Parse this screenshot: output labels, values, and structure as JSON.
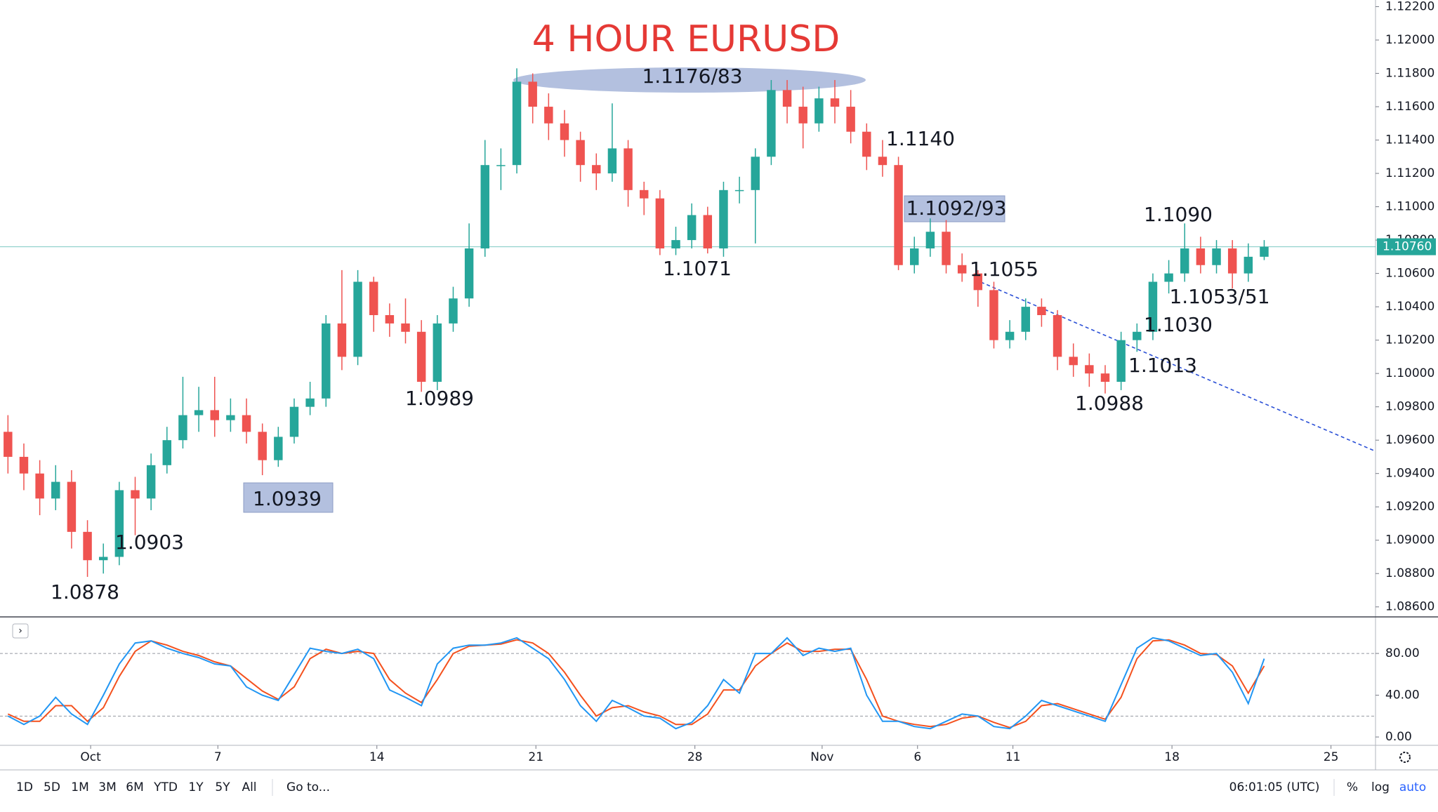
{
  "chart_data": [
    {
      "type": "candlestick",
      "title": "4 HOUR EURUSD",
      "open": [
        1.0965,
        1.095,
        1.094,
        1.0925,
        1.0935,
        1.0905,
        1.0888,
        1.089,
        1.093,
        1.0925,
        1.0945,
        1.096,
        1.0975,
        1.0978,
        1.0972,
        1.0975,
        1.0965,
        1.0948,
        1.0962,
        1.098,
        1.0985,
        1.103,
        1.101,
        1.1055,
        1.1035,
        1.103,
        1.1025,
        1.0995,
        1.103,
        1.1045,
        1.1075,
        1.1125,
        1.1125,
        1.1175,
        1.116,
        1.115,
        1.114,
        1.1125,
        1.112,
        1.1135,
        1.111,
        1.1105,
        1.1075,
        1.108,
        1.1095,
        1.1075,
        1.111,
        1.111,
        1.113,
        1.117,
        1.116,
        1.115,
        1.1165,
        1.116,
        1.1145,
        1.113,
        1.1125,
        1.1065,
        1.1075,
        1.1085,
        1.1065,
        1.106,
        1.105,
        1.102,
        1.1025,
        1.104,
        1.1035,
        1.101,
        1.1005,
        1.1,
        1.0995,
        1.102,
        1.1025,
        1.1055,
        1.106,
        1.1075,
        1.1065,
        1.1075,
        1.106,
        1.107
      ],
      "high": [
        1.0975,
        1.0958,
        1.0948,
        1.0945,
        1.0942,
        1.0912,
        1.0898,
        1.0935,
        1.0938,
        1.0952,
        1.0968,
        1.0998,
        1.0992,
        1.0998,
        1.0985,
        1.0985,
        1.097,
        1.0968,
        1.0985,
        1.0995,
        1.1035,
        1.1062,
        1.1062,
        1.1058,
        1.1042,
        1.1045,
        1.1032,
        1.1035,
        1.1052,
        1.109,
        1.114,
        1.1135,
        1.1183,
        1.118,
        1.1168,
        1.1158,
        1.1145,
        1.1132,
        1.1162,
        1.114,
        1.1115,
        1.111,
        1.1088,
        1.1102,
        1.11,
        1.1115,
        1.1118,
        1.1135,
        1.1176,
        1.1176,
        1.1172,
        1.1172,
        1.1176,
        1.117,
        1.115,
        1.114,
        1.113,
        1.1082,
        1.1093,
        1.1092,
        1.1072,
        1.1062,
        1.1055,
        1.1032,
        1.1045,
        1.1045,
        1.1038,
        1.1018,
        1.1012,
        1.1005,
        1.1025,
        1.103,
        1.106,
        1.1068,
        1.109,
        1.1082,
        1.108,
        1.108,
        1.1078,
        1.108
      ],
      "low": [
        1.094,
        1.093,
        1.0915,
        1.0918,
        1.0895,
        1.0878,
        1.088,
        1.0885,
        1.0903,
        1.0918,
        1.094,
        1.0955,
        1.0965,
        1.0962,
        1.0965,
        1.0958,
        1.0939,
        1.0944,
        1.0958,
        1.0975,
        1.098,
        1.1002,
        1.1005,
        1.1025,
        1.1022,
        1.1018,
        1.0989,
        1.099,
        1.1025,
        1.104,
        1.107,
        1.111,
        1.112,
        1.115,
        1.114,
        1.113,
        1.1115,
        1.111,
        1.1115,
        1.11,
        1.1095,
        1.1071,
        1.1071,
        1.1075,
        1.1072,
        1.107,
        1.1102,
        1.1078,
        1.1125,
        1.115,
        1.1135,
        1.1145,
        1.115,
        1.1138,
        1.1122,
        1.1118,
        1.1062,
        1.106,
        1.107,
        1.106,
        1.1055,
        1.104,
        1.1015,
        1.1015,
        1.102,
        1.1028,
        1.1002,
        1.0998,
        1.0992,
        1.0988,
        1.099,
        1.1013,
        1.102,
        1.1048,
        1.1055,
        1.106,
        1.106,
        1.1051,
        1.1055,
        1.1068
      ],
      "close": [
        1.095,
        1.094,
        1.0925,
        1.0935,
        1.0905,
        1.0888,
        1.089,
        1.093,
        1.0925,
        1.0945,
        1.096,
        1.0975,
        1.0978,
        1.0972,
        1.0975,
        1.0965,
        1.0948,
        1.0962,
        1.098,
        1.0985,
        1.103,
        1.101,
        1.1055,
        1.1035,
        1.103,
        1.1025,
        1.0995,
        1.103,
        1.1045,
        1.1075,
        1.1125,
        1.1125,
        1.1175,
        1.116,
        1.115,
        1.114,
        1.1125,
        1.112,
        1.1135,
        1.111,
        1.1105,
        1.1075,
        1.108,
        1.1095,
        1.1075,
        1.111,
        1.111,
        1.113,
        1.117,
        1.116,
        1.115,
        1.1165,
        1.116,
        1.1145,
        1.113,
        1.1125,
        1.1065,
        1.1075,
        1.1085,
        1.1065,
        1.106,
        1.105,
        1.102,
        1.1025,
        1.104,
        1.1035,
        1.101,
        1.1005,
        1.1,
        1.0995,
        1.102,
        1.1025,
        1.1055,
        1.106,
        1.1075,
        1.1065,
        1.1075,
        1.106,
        1.107,
        1.1076
      ],
      "up_color": "#26a69a",
      "down_color": "#ef5350",
      "xlim": [
        -0.5,
        86
      ],
      "xticks": [
        {
          "value": 5.2,
          "label": "Oct"
        },
        {
          "value": 13.2,
          "label": "7"
        },
        {
          "value": 23.2,
          "label": "14"
        },
        {
          "value": 33.2,
          "label": "21"
        },
        {
          "value": 43.2,
          "label": "28"
        },
        {
          "value": 51.2,
          "label": "Nov"
        },
        {
          "value": 57.2,
          "label": "6"
        },
        {
          "value": 63.2,
          "label": "11"
        },
        {
          "value": 73.2,
          "label": "18"
        },
        {
          "value": 83.2,
          "label": "25"
        }
      ],
      "ylim": [
        1.0854,
        1.1224
      ],
      "yticks": [
        {
          "value": 1.086,
          "label": "1.08600"
        },
        {
          "value": 1.088,
          "label": "1.08800"
        },
        {
          "value": 1.09,
          "label": "1.09000"
        },
        {
          "value": 1.092,
          "label": "1.09200"
        },
        {
          "value": 1.094,
          "label": "1.09400"
        },
        {
          "value": 1.096,
          "label": "1.09600"
        },
        {
          "value": 1.098,
          "label": "1.09800"
        },
        {
          "value": 1.1,
          "label": "1.10000"
        },
        {
          "value": 1.102,
          "label": "1.10200"
        },
        {
          "value": 1.104,
          "label": "1.10400"
        },
        {
          "value": 1.106,
          "label": "1.10600"
        },
        {
          "value": 1.108,
          "label": "1.10800"
        },
        {
          "value": 1.11,
          "label": "1.11000"
        },
        {
          "value": 1.112,
          "label": "1.11200"
        },
        {
          "value": 1.114,
          "label": "1.11400"
        },
        {
          "value": 1.116,
          "label": "1.11600"
        },
        {
          "value": 1.118,
          "label": "1.11800"
        },
        {
          "value": 1.12,
          "label": "1.12000"
        },
        {
          "value": 1.122,
          "label": "1.12200"
        }
      ],
      "last_price": {
        "value": 1.1076,
        "label": "1.10760"
      },
      "annotations": [
        "1.1176/83",
        "1.1140",
        "1.1092/93",
        "1.1071",
        "1.0989",
        "1.0939",
        "1.0903",
        "1.0878",
        "1.1055",
        "1.1090",
        "1.1053/51",
        "1.1030",
        "1.1013",
        "1.0988"
      ]
    },
    {
      "type": "line",
      "series": [
        {
          "color": "#2196f3",
          "values": [
            20,
            12,
            20,
            38,
            22,
            12,
            40,
            70,
            90,
            92,
            85,
            80,
            76,
            70,
            68,
            48,
            40,
            35,
            60,
            85,
            82,
            80,
            84,
            75,
            45,
            38,
            30,
            70,
            85,
            88,
            88,
            90,
            95,
            85,
            75,
            55,
            30,
            15,
            35,
            28,
            20,
            18,
            8,
            14,
            30,
            55,
            42,
            80,
            80,
            95,
            78,
            85,
            82,
            85,
            40,
            15,
            15,
            10,
            8,
            15,
            22,
            20,
            10,
            8,
            20,
            35,
            30,
            25,
            20,
            15,
            50,
            85,
            95,
            92,
            85,
            78,
            80,
            62,
            32,
            75
          ]
        },
        {
          "color": "#f4511e",
          "values": [
            22,
            15,
            15,
            30,
            30,
            15,
            28,
            58,
            82,
            92,
            88,
            82,
            78,
            72,
            68,
            56,
            44,
            36,
            48,
            75,
            84,
            80,
            82,
            80,
            55,
            42,
            33,
            55,
            80,
            87,
            88,
            89,
            93,
            90,
            80,
            62,
            40,
            20,
            28,
            30,
            24,
            20,
            12,
            12,
            22,
            45,
            45,
            68,
            80,
            90,
            82,
            82,
            84,
            84,
            55,
            20,
            15,
            12,
            10,
            12,
            18,
            20,
            14,
            9,
            15,
            30,
            32,
            27,
            22,
            17,
            38,
            75,
            92,
            93,
            88,
            80,
            79,
            68,
            42,
            68
          ]
        }
      ],
      "ylim": [
        -8,
        115
      ],
      "yticks": [
        {
          "value": 0,
          "label": "0.00"
        },
        {
          "value": 40,
          "label": "40.00"
        },
        {
          "value": 80,
          "label": "80.00"
        }
      ],
      "bands": [
        20,
        80
      ]
    }
  ],
  "toolbar": {
    "ranges": [
      "1D",
      "5D",
      "1M",
      "3M",
      "6M",
      "YTD",
      "1Y",
      "5Y",
      "All"
    ],
    "goto": "Go to...",
    "clock": "06:01:05 (UTC)",
    "options": [
      "%",
      "log",
      "auto"
    ]
  }
}
